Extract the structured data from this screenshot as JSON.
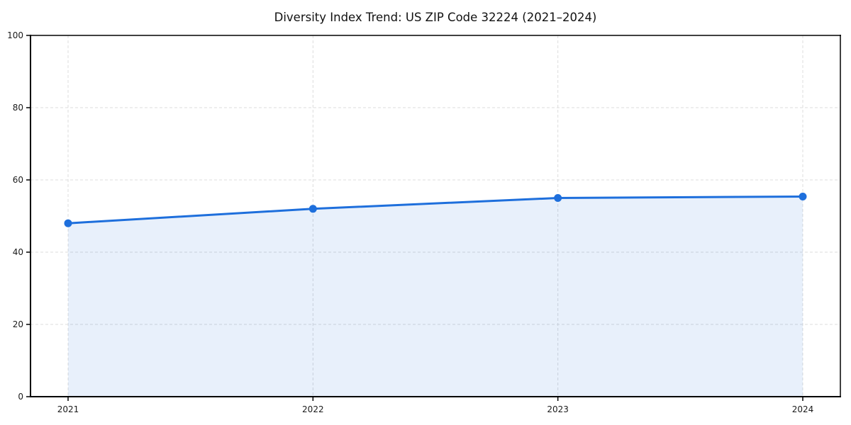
{
  "title": "Diversity Index Trend: US ZIP Code 32224 (2021–2024)",
  "chart_data": {
    "type": "area",
    "title": "Diversity Index Trend: US ZIP Code 32224 (2021–2024)",
    "categories": [
      "2021",
      "2022",
      "2023",
      "2024"
    ],
    "values": [
      48,
      52,
      55,
      55.4
    ],
    "xlabel": "",
    "ylabel": "",
    "ylim": [
      0,
      100
    ],
    "yticks": [
      0,
      20,
      40,
      60,
      80,
      100
    ],
    "grid": true,
    "grid_style": "dashed",
    "legend": false,
    "fill_alpha": 0.1,
    "colors": {
      "line": "#1e6fdc",
      "marker": "#1e6fdc",
      "fill": "#1e6fdc",
      "grid": "#dcdcdc",
      "spine": "#000000",
      "text": "#1a1a1a",
      "background": "#ffffff"
    }
  }
}
